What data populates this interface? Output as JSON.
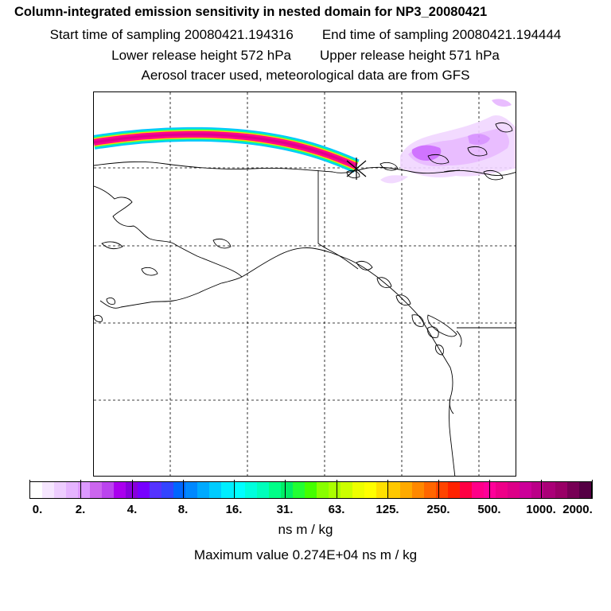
{
  "header": {
    "title": "Column-integrated emission sensitivity in nested domain for NP3_20080421",
    "start_time": "Start time of sampling 20080421.194316",
    "end_time": "End time of sampling 20080421.194444",
    "lower_height": "Lower release height  572 hPa",
    "upper_height": "Upper release height  571 hPa",
    "tracer_info": "Aerosol tracer used, meteorological data are from GFS"
  },
  "map": {
    "region": "Alaska, western Canada and Pacific Northwest coast",
    "release_marker": "release-point-x",
    "plume_colors": [
      "#00ffff",
      "#00ff99",
      "#ffd000",
      "#ff0090",
      "#e0008a"
    ],
    "sensitivity_colors": [
      "#e7b6ff",
      "#cc66ff",
      "#aa00ff"
    ]
  },
  "colorbar": {
    "colors": [
      "#ffffff",
      "#f6e6ff",
      "#eecdff",
      "#e6b4ff",
      "#dd99ff",
      "#cc66ee",
      "#bb44ee",
      "#aa00ee",
      "#8800dd",
      "#7700ff",
      "#5533ff",
      "#3344ff",
      "#0066ff",
      "#0088ff",
      "#00aaff",
      "#00ccff",
      "#00eeff",
      "#00ffff",
      "#00ffdd",
      "#00ffbb",
      "#00ff88",
      "#00ee66",
      "#22ff33",
      "#44ff00",
      "#88ff00",
      "#aaff00",
      "#ccff00",
      "#eeff00",
      "#ffff00",
      "#ffe000",
      "#ffc800",
      "#ffaa00",
      "#ff8800",
      "#ff6600",
      "#ff4400",
      "#ff2200",
      "#ff0044",
      "#ff0088",
      "#ff0099",
      "#ee0088",
      "#dd0088",
      "#cc0099",
      "#bb0088",
      "#aa0077",
      "#990066",
      "#770055",
      "#550044"
    ],
    "tick_labels": [
      "0.",
      "2.",
      "4.",
      "8.",
      "16.",
      "31.",
      "63.",
      "125.",
      "250.",
      "500.",
      "1000.",
      "2000."
    ],
    "units": "ns m / kg",
    "max_value": "Maximum value  0.274E+04 ns m / kg"
  }
}
